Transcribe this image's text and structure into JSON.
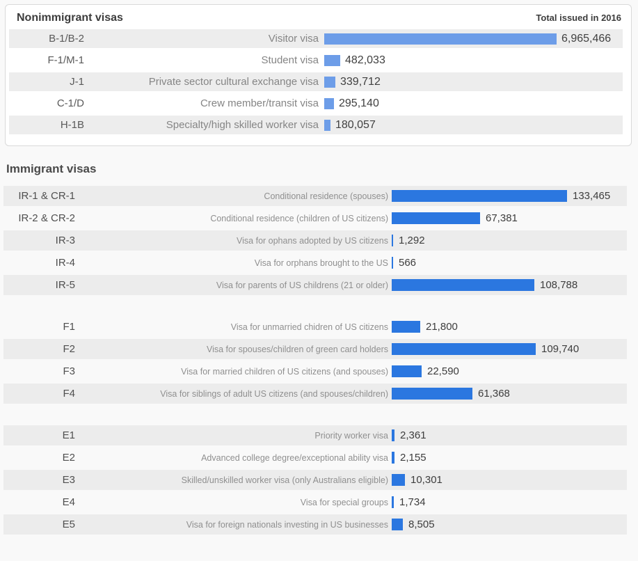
{
  "colors": {
    "nonimmigrant_bar": "#6d9de8",
    "immigrant_bar": "#2b77e0",
    "row_shade_panel": "#ededed",
    "row_shade_section": "#ececec",
    "panel_border": "#d9d9d9",
    "page_background": "#f9f9f9"
  },
  "chart_data": [
    {
      "type": "bar",
      "orientation": "horizontal",
      "title": "Nonimmigrant visas",
      "note": "Total issued in 2016",
      "bar_color": "#6d9de8",
      "xlim": [
        0,
        6965466
      ],
      "rows": [
        {
          "code": "B-1/B-2",
          "label": "Visitor visa",
          "value": 6965466
        },
        {
          "code": "F-1/M-1",
          "label": "Student visa",
          "value": 482033
        },
        {
          "code": "J-1",
          "label": "Private sector cultural exchange visa",
          "value": 339712
        },
        {
          "code": "C-1/D",
          "label": "Crew member/transit visa",
          "value": 295140
        },
        {
          "code": "H-1B",
          "label": "Specialty/high skilled worker visa",
          "value": 180057
        }
      ]
    },
    {
      "type": "bar",
      "orientation": "horizontal",
      "title": "Immigrant visas",
      "bar_color": "#2b77e0",
      "xlim": [
        0,
        133465
      ],
      "groups": [
        {
          "name": "IR",
          "rows": [
            {
              "code": "IR-1 & CR-1",
              "label": "Conditional residence (spouses)",
              "value": 133465
            },
            {
              "code": "IR-2 & CR-2",
              "label": "Conditional residence (children of US citizens)",
              "value": 67381
            },
            {
              "code": "IR-3",
              "label": "Visa for ophans adopted by US citizens",
              "value": 1292
            },
            {
              "code": "IR-4",
              "label": "Visa for orphans brought to the US",
              "value": 566
            },
            {
              "code": "IR-5",
              "label": "Visa for parents of US childrens (21 or older)",
              "value": 108788
            }
          ]
        },
        {
          "name": "F",
          "rows": [
            {
              "code": "F1",
              "label": "Visa for unmarried chidren of US citizens",
              "value": 21800
            },
            {
              "code": "F2",
              "label": "Visa for spouses/children of green card holders",
              "value": 109740
            },
            {
              "code": "F3",
              "label": "Visa for married children of US citizens (and spouses)",
              "value": 22590
            },
            {
              "code": "F4",
              "label": "Visa for siblings of adult US citizens (and spouses/children)",
              "value": 61368
            }
          ]
        },
        {
          "name": "E",
          "rows": [
            {
              "code": "E1",
              "label": "Priority worker visa",
              "value": 2361
            },
            {
              "code": "E2",
              "label": "Advanced college degree/exceptional ability visa",
              "value": 2155
            },
            {
              "code": "E3",
              "label": "Skilled/unskilled worker visa (only Australians eligible)",
              "value": 10301
            },
            {
              "code": "E4",
              "label": "Visa for special groups",
              "value": 1734
            },
            {
              "code": "E5",
              "label": "Visa for foreign nationals investing in US businesses",
              "value": 8505
            }
          ]
        }
      ]
    }
  ]
}
